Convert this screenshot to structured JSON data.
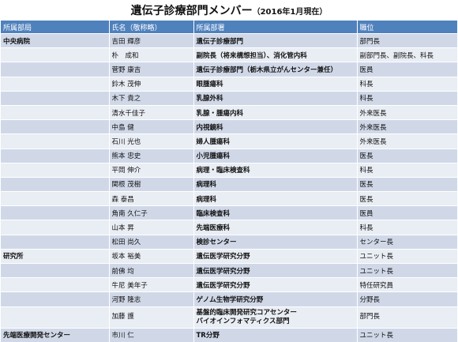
{
  "title": {
    "main": "遺伝子診療部門メンバー",
    "sub": "（2016年1月現在）"
  },
  "headers": [
    "所属部局",
    "氏名（敬称略）",
    "所属部署",
    "職位"
  ],
  "rows": [
    {
      "bureau": "中央病院",
      "name": "吉田 輝彦",
      "dept": "遺伝子診療部門",
      "position": "部門長"
    },
    {
      "bureau": "",
      "name": "朴　成和",
      "dept": "副院長（将来構想担当）、消化管内科",
      "position": "副部門長、副院長、科長"
    },
    {
      "bureau": "",
      "name": "菅野 康吉",
      "dept": "遺伝子診療部門（栃木県立がんセンター兼任）",
      "position": "医員"
    },
    {
      "bureau": "",
      "name": "鈴木 茂伸",
      "dept": "眼腫瘍科",
      "position": "科長"
    },
    {
      "bureau": "",
      "name": "木下 貴之",
      "dept": "乳腺外科",
      "position": "科長"
    },
    {
      "bureau": "",
      "name": "清水千佳子",
      "dept": "乳腺・腫瘍内科",
      "position": "外来医長"
    },
    {
      "bureau": "",
      "name": "中島 健",
      "dept": "内視鏡科",
      "position": "外来医長"
    },
    {
      "bureau": "",
      "name": "石川 光也",
      "dept": "婦人腫瘍科",
      "position": "外来医長"
    },
    {
      "bureau": "",
      "name": "熊本 忠史",
      "dept": "小児腫瘍科",
      "position": "医長"
    },
    {
      "bureau": "",
      "name": "平岡 伸介",
      "dept": "病理・臨床検査科",
      "position": "科長"
    },
    {
      "bureau": "",
      "name": "関根 茂樹",
      "dept": "病理科",
      "position": "医長"
    },
    {
      "bureau": "",
      "name": "森 泰昌",
      "dept": "病理科",
      "position": "医長"
    },
    {
      "bureau": "",
      "name": "角南 久仁子",
      "dept": "臨床検査科",
      "position": "医員"
    },
    {
      "bureau": "",
      "name": "山本 昇",
      "dept": "先端医療科",
      "position": "科長"
    },
    {
      "bureau": "",
      "name": "松田 尚久",
      "dept": "検診センター",
      "position": "センター長"
    },
    {
      "bureau": "研究所",
      "name": "坂本 裕美",
      "dept": "遺伝医学研究分野",
      "position": "ユニット長"
    },
    {
      "bureau": "",
      "name": "前佛 均",
      "dept": "遺伝医学研究分野",
      "position": "ユニット長"
    },
    {
      "bureau": "",
      "name": "牛尼 美年子",
      "dept": "遺伝医学研究分野",
      "position": "特任研究員"
    },
    {
      "bureau": "",
      "name": "河野 隆志",
      "dept": "ゲノム生物学研究分野",
      "position": "分野長"
    },
    {
      "bureau": "",
      "name": "加藤 護",
      "dept": "基盤的臨床開発研究コアセンター\nバイオインフォマティクス部門",
      "position": "部門長",
      "tall": true
    },
    {
      "bureau": "先端医療開発センター",
      "name": "市川 仁",
      "dept": "TR分野",
      "position": "ユニット長"
    }
  ]
}
